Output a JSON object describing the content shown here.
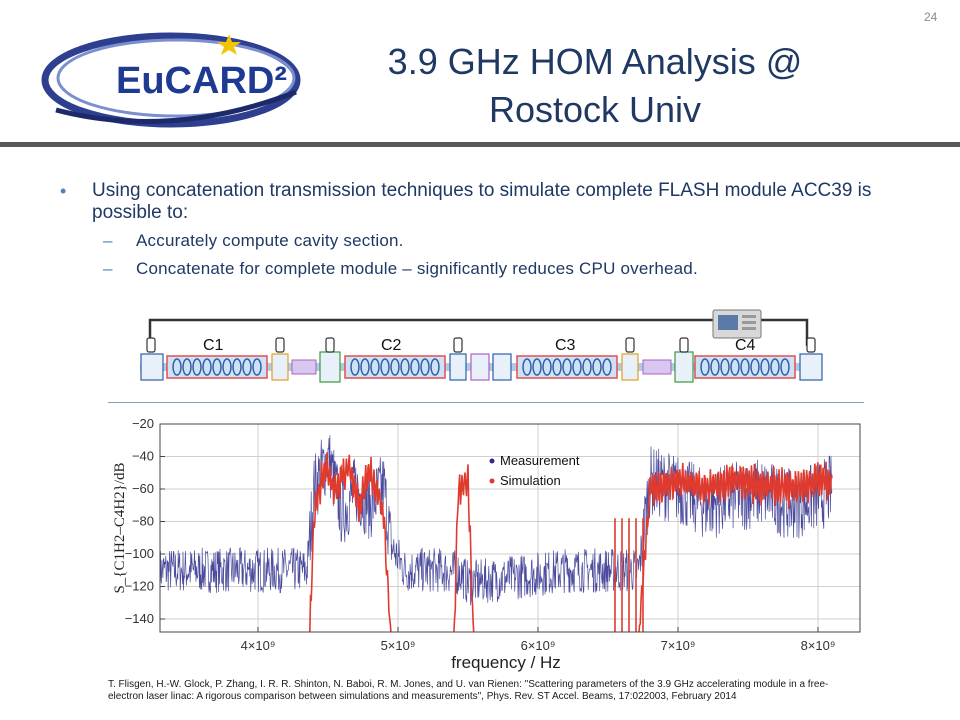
{
  "header": {
    "logo_text": "EuCARD²",
    "title_line1": "3.9 GHz HOM Analysis @",
    "title_line2": "Rostock Univ",
    "page_number": "24"
  },
  "bullets": {
    "main": "Using concatenation transmission techniques to simulate complete FLASH module ACC39 is possible to:",
    "sub": [
      "Accurately compute cavity section.",
      "Concatenate for complete module – significantly reduces CPU overhead."
    ]
  },
  "schematic": {
    "cavity_labels": [
      "C1",
      "C2",
      "C3",
      "C4"
    ]
  },
  "chart_data": {
    "type": "line",
    "xlabel": "frequency / Hz",
    "ylabel": "S_{C1H2–C4H2}/dB",
    "xlim": [
      3300000000.0,
      8300000000.0
    ],
    "ylim": [
      -148,
      -20
    ],
    "xticks": [
      "4×10⁹",
      "5×10⁹",
      "6×10⁹",
      "7×10⁹",
      "8×10⁹"
    ],
    "xtick_values": [
      4000000000.0,
      5000000000.0,
      6000000000.0,
      7000000000.0,
      8000000000.0
    ],
    "yticks": [
      -20,
      -40,
      -60,
      -80,
      -100,
      -120,
      -140
    ],
    "legend_position": "top-center",
    "series": [
      {
        "name": "Measurement",
        "color": "#2c2c8c",
        "x": [
          3300000000.0,
          4350000000.0,
          4400000000.0,
          4500000000.0,
          4600000000.0,
          4700000000.0,
          4800000000.0,
          4900000000.0,
          4950000000.0,
          5050000000.0,
          5300000000.0,
          5450000000.0,
          5500000000.0,
          6200000000.0,
          6720000000.0,
          6800000000.0,
          7000000000.0,
          7200000000.0,
          7400000000.0,
          7600000000.0,
          7800000000.0,
          8000000000.0,
          8100000000.0
        ],
        "y": [
          -110,
          -110,
          -60,
          -40,
          -75,
          -60,
          -70,
          -58,
          -95,
          -110,
          -110,
          -112,
          -118,
          -110,
          -110,
          -55,
          -60,
          -70,
          -65,
          -62,
          -70,
          -65,
          -60
        ]
      },
      {
        "name": "Simulation",
        "color": "#e03a2e",
        "x": [
          4370000000.0,
          4400000000.0,
          4480000000.0,
          4550000000.0,
          4650000000.0,
          4720000000.0,
          4800000000.0,
          4860000000.0,
          4900000000.0,
          4950000000.0,
          5400000000.0,
          5430000000.0,
          5500000000.0,
          5540000000.0,
          6500000000.0,
          6720000000.0,
          6800000000.0,
          7000000000.0,
          7200000000.0,
          7400000000.0,
          7600000000.0,
          7800000000.0,
          8000000000.0,
          8100000000.0
        ],
        "y": [
          -150,
          -75,
          -45,
          -60,
          -45,
          -70,
          -50,
          -62,
          -80,
          -150,
          -150,
          -60,
          -55,
          -150,
          -150,
          -150,
          -60,
          -55,
          -60,
          -55,
          -58,
          -60,
          -55,
          -55
        ]
      }
    ]
  },
  "citation": {
    "line1": "T. Flisgen, H.-W. Glock, P. Zhang, I. R. R. Shinton, N. Baboi, R. M. Jones, and U. van Rienen: \"Scattering parameters of the 3.9 GHz accelerating module in a free-",
    "line2": "electron laser linac: A rigorous comparison between simulations and measurements\", Phys. Rev. ST Accel. Beams, 17:022003,  February 2014"
  },
  "colors": {
    "title": "#1f3864",
    "bullet": "#4f81bd",
    "header_rule": "#595959",
    "measurement": "#2c2c8c",
    "simulation": "#e03a2e"
  }
}
